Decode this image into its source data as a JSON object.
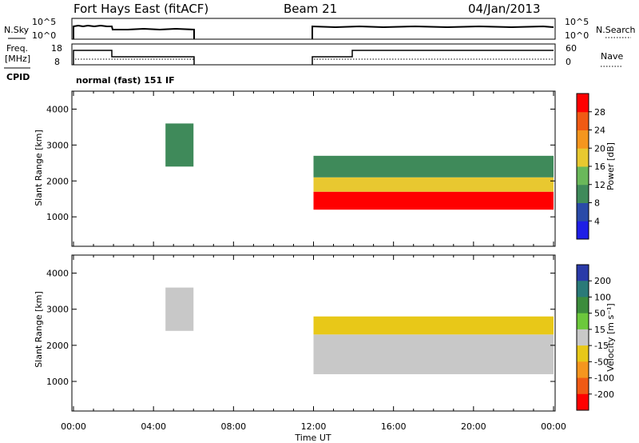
{
  "header": {
    "station": "Fort Hays East (fitACF)",
    "beam": "Beam 21",
    "date": "04/Jan/2013"
  },
  "aux": {
    "nsky_label": "N.Sky",
    "nsearch_label": "N.Search",
    "noise_tick_top": "10^5",
    "noise_tick_bottom": "10^0",
    "freq_label_1": "Freq.",
    "freq_label_2": "[MHz]",
    "freq_tick_top": "18",
    "freq_tick_bottom": "8",
    "nave_label": "Nave",
    "nave_tick_top": "60",
    "nave_tick_bottom": "0",
    "cpid_label": "CPID",
    "cpid_value": "normal (fast) 151 IF"
  },
  "axes": {
    "ylabel": "Slant Range [km]",
    "xlabel": "Time UT",
    "x_ticks": [
      "00:00",
      "04:00",
      "08:00",
      "12:00",
      "16:00",
      "20:00",
      "00:00"
    ],
    "y_ticks": [
      "1000",
      "2000",
      "3000",
      "4000"
    ]
  },
  "colorbars": {
    "power": {
      "label": "Power [dB]",
      "ticks": [
        "4",
        "8",
        "12",
        "16",
        "20",
        "24",
        "28"
      ],
      "colors": [
        "#1e1ee6",
        "#2a4aa8",
        "#3f8a5a",
        "#6ab85a",
        "#e8c830",
        "#f5961e",
        "#f05a14",
        "#ff0000"
      ]
    },
    "velocity": {
      "label": "Velocity [m s⁻¹]",
      "ticks": [
        "200",
        "100",
        "50",
        "15",
        "-15",
        "-50",
        "-100",
        "-200"
      ],
      "colors": [
        "#2a3aa8",
        "#2a7a78",
        "#3c8c3c",
        "#6cc83c",
        "#c8c8c8",
        "#e8c818",
        "#f5961e",
        "#f05a14",
        "#ff0000"
      ]
    }
  },
  "chart_data": [
    {
      "type": "heatmap",
      "title": "Power",
      "xlabel": "Time UT",
      "ylabel": "Slant Range [km]",
      "xlim_hours": [
        0,
        24
      ],
      "ylim": [
        180,
        4500
      ],
      "units": "dB",
      "scale_range": [
        0,
        32
      ],
      "regions": [
        {
          "t0": 4.6,
          "t1": 6.0,
          "r0": 2400,
          "r1": 3600,
          "value": 8
        },
        {
          "t0": 12.0,
          "t1": 24.0,
          "r0": 1200,
          "r1": 1700,
          "value": 28
        },
        {
          "t0": 12.0,
          "t1": 24.0,
          "r0": 1700,
          "r1": 2100,
          "value": 16
        },
        {
          "t0": 12.0,
          "t1": 24.0,
          "r0": 2100,
          "r1": 2700,
          "value": 8
        }
      ]
    },
    {
      "type": "heatmap",
      "title": "Velocity",
      "xlabel": "Time UT",
      "ylabel": "Slant Range [km]",
      "xlim_hours": [
        0,
        24
      ],
      "ylim": [
        180,
        4500
      ],
      "units": "m s-1",
      "scale_range": [
        -200,
        200
      ],
      "regions": [
        {
          "t0": 4.6,
          "t1": 6.0,
          "r0": 2400,
          "r1": 3600,
          "value": 0
        },
        {
          "t0": 12.0,
          "t1": 24.0,
          "r0": 1200,
          "r1": 2300,
          "value": 0
        },
        {
          "t0": 12.0,
          "t1": 24.0,
          "r0": 2300,
          "r1": 2800,
          "value": -40
        }
      ]
    }
  ]
}
